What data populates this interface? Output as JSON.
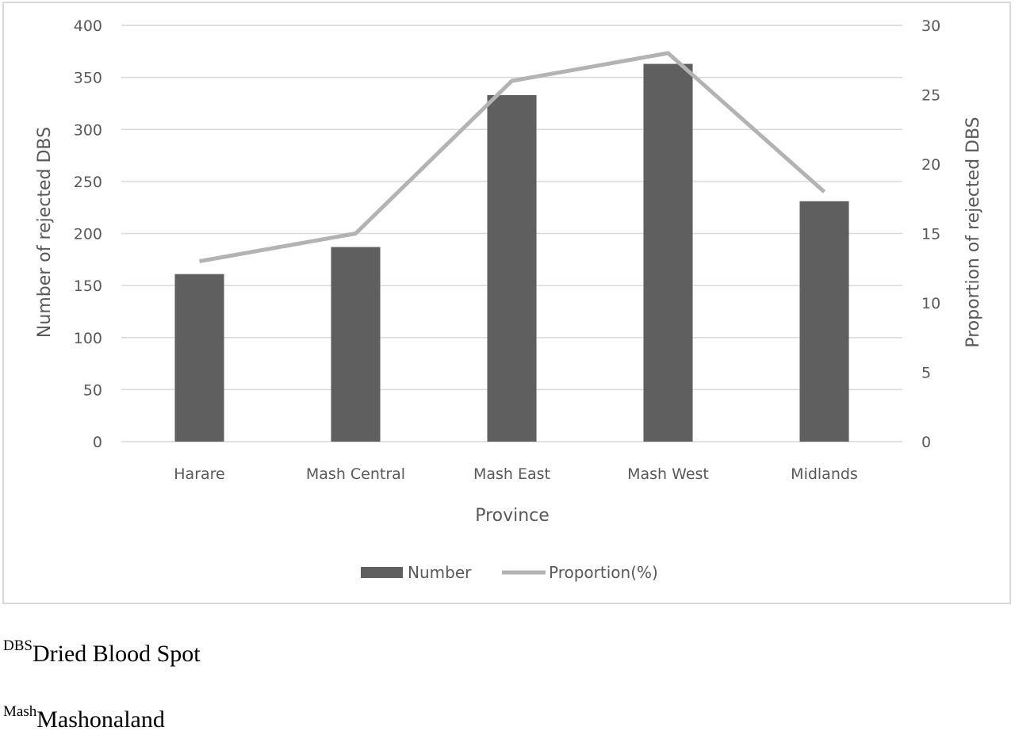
{
  "chart_data": {
    "type": "bar",
    "categories": [
      "Harare",
      "Mash Central",
      "Mash East",
      "Mash West",
      "Midlands"
    ],
    "series": [
      {
        "name": "Number",
        "type": "bar",
        "axis": "left",
        "color": "#5f5f5f",
        "values": [
          161,
          187,
          333,
          363,
          231
        ]
      },
      {
        "name": "Proportion(%)",
        "type": "line",
        "axis": "right",
        "color": "#b3b3b3",
        "values": [
          13,
          15,
          26,
          28,
          18
        ]
      }
    ],
    "xlabel": "Province",
    "ylabel": "Number of rejected DBS",
    "y2label": "Proportion of rejected DBS",
    "ylim": [
      0,
      400
    ],
    "y2lim": [
      0,
      30
    ],
    "yticks": [
      "0",
      "50",
      "100",
      "150",
      "200",
      "250",
      "300",
      "350",
      "400"
    ],
    "y2ticks": [
      "0",
      "5",
      "10",
      "15",
      "20",
      "25",
      "30"
    ],
    "grid": true,
    "legend_position": "bottom"
  },
  "footnotes": [
    {
      "sup": "DBS",
      "text": "Dried Blood Spot"
    },
    {
      "sup": "Mash",
      "text": "Mashonaland"
    }
  ]
}
